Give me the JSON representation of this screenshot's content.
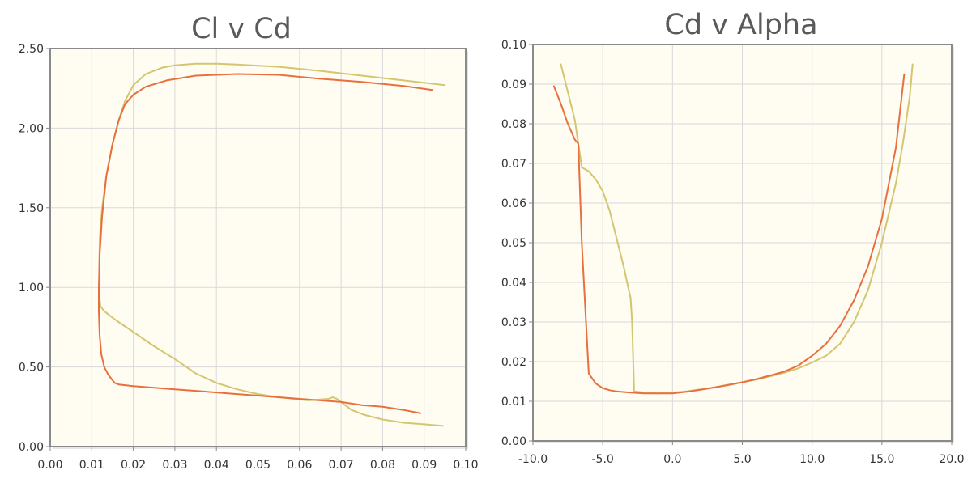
{
  "chart_data": [
    {
      "type": "line",
      "title": "Cl v Cd",
      "xlabel": "",
      "ylabel": "",
      "xlim": [
        0,
        0.1
      ],
      "ylim": [
        0,
        2.5
      ],
      "x_ticks": [
        "0.00",
        "0.01",
        "0.02",
        "0.03",
        "0.04",
        "0.05",
        "0.06",
        "0.07",
        "0.08",
        "0.09",
        "0.10"
      ],
      "y_ticks": [
        "0.00",
        "0.50",
        "1.00",
        "1.50",
        "2.00",
        "2.50"
      ],
      "grid": true,
      "background": "#fffcf2",
      "series": [
        {
          "color": "#d4c670",
          "points": [
            [
              0.0945,
              0.13
            ],
            [
              0.09,
              0.14
            ],
            [
              0.085,
              0.15
            ],
            [
              0.08,
              0.17
            ],
            [
              0.0755,
              0.2
            ],
            [
              0.0725,
              0.23
            ],
            [
              0.0705,
              0.27
            ],
            [
              0.069,
              0.3
            ],
            [
              0.068,
              0.31
            ],
            [
              0.067,
              0.3
            ],
            [
              0.062,
              0.29
            ],
            [
              0.055,
              0.31
            ],
            [
              0.05,
              0.33
            ],
            [
              0.045,
              0.36
            ],
            [
              0.04,
              0.4
            ],
            [
              0.035,
              0.46
            ],
            [
              0.03,
              0.55
            ],
            [
              0.025,
              0.63
            ],
            [
              0.02,
              0.72
            ],
            [
              0.016,
              0.79
            ],
            [
              0.013,
              0.85
            ],
            [
              0.0121,
              0.88
            ],
            [
              0.0118,
              0.95
            ],
            [
              0.0118,
              1.1
            ],
            [
              0.0119,
              1.3
            ],
            [
              0.0125,
              1.5
            ],
            [
              0.0135,
              1.7
            ],
            [
              0.015,
              1.9
            ],
            [
              0.0165,
              2.05
            ],
            [
              0.018,
              2.17
            ],
            [
              0.02,
              2.27
            ],
            [
              0.023,
              2.34
            ],
            [
              0.027,
              2.38
            ],
            [
              0.03,
              2.395
            ],
            [
              0.035,
              2.405
            ],
            [
              0.04,
              2.405
            ],
            [
              0.045,
              2.4
            ],
            [
              0.055,
              2.385
            ],
            [
              0.065,
              2.36
            ],
            [
              0.075,
              2.33
            ],
            [
              0.085,
              2.3
            ],
            [
              0.095,
              2.27
            ]
          ]
        },
        {
          "color": "#e8703e",
          "points": [
            [
              0.0891,
              0.21
            ],
            [
              0.085,
              0.23
            ],
            [
              0.08,
              0.25
            ],
            [
              0.075,
              0.26
            ],
            [
              0.07,
              0.28
            ],
            [
              0.065,
              0.29
            ],
            [
              0.06,
              0.3
            ],
            [
              0.055,
              0.31
            ],
            [
              0.05,
              0.32
            ],
            [
              0.045,
              0.33
            ],
            [
              0.04,
              0.34
            ],
            [
              0.035,
              0.35
            ],
            [
              0.03,
              0.36
            ],
            [
              0.025,
              0.37
            ],
            [
              0.02,
              0.38
            ],
            [
              0.0165,
              0.39
            ],
            [
              0.0155,
              0.4
            ],
            [
              0.014,
              0.45
            ],
            [
              0.013,
              0.5
            ],
            [
              0.0123,
              0.58
            ],
            [
              0.0119,
              0.7
            ],
            [
              0.0117,
              0.85
            ],
            [
              0.0117,
              1.0
            ],
            [
              0.0119,
              1.2
            ],
            [
              0.0125,
              1.45
            ],
            [
              0.0135,
              1.7
            ],
            [
              0.015,
              1.9
            ],
            [
              0.0165,
              2.05
            ],
            [
              0.018,
              2.15
            ],
            [
              0.02,
              2.21
            ],
            [
              0.023,
              2.26
            ],
            [
              0.028,
              2.3
            ],
            [
              0.035,
              2.33
            ],
            [
              0.045,
              2.34
            ],
            [
              0.055,
              2.335
            ],
            [
              0.065,
              2.31
            ],
            [
              0.075,
              2.29
            ],
            [
              0.085,
              2.265
            ],
            [
              0.092,
              2.24
            ]
          ]
        }
      ]
    },
    {
      "type": "line",
      "title": "Cd v Alpha",
      "xlabel": "",
      "ylabel": "",
      "xlim": [
        -10,
        20
      ],
      "ylim": [
        0,
        0.1
      ],
      "x_ticks": [
        "-10.0",
        "-5.0",
        "0.0",
        "5.0",
        "10.0",
        "15.0",
        "20.0"
      ],
      "y_ticks": [
        "0.00",
        "0.01",
        "0.02",
        "0.03",
        "0.04",
        "0.05",
        "0.06",
        "0.07",
        "0.08",
        "0.09",
        "0.10"
      ],
      "grid": true,
      "background": "#fffcf2",
      "series": [
        {
          "color": "#d4c670",
          "points": [
            [
              -8.0,
              0.095
            ],
            [
              -7.5,
              0.088
            ],
            [
              -7.0,
              0.081
            ],
            [
              -6.75,
              0.075
            ],
            [
              -6.5,
              0.069
            ],
            [
              -6.0,
              0.068
            ],
            [
              -5.5,
              0.066
            ],
            [
              -5.0,
              0.063
            ],
            [
              -4.5,
              0.058
            ],
            [
              -4.0,
              0.051
            ],
            [
              -3.5,
              0.044
            ],
            [
              -3.0,
              0.036
            ],
            [
              -2.9,
              0.03
            ],
            [
              -2.75,
              0.0125
            ],
            [
              -2.5,
              0.0124
            ],
            [
              -2.0,
              0.0122
            ],
            [
              -1.0,
              0.012
            ],
            [
              0.0,
              0.0122
            ],
            [
              1.0,
              0.0125
            ],
            [
              2.0,
              0.013
            ],
            [
              3.0,
              0.0135
            ],
            [
              4.0,
              0.0142
            ],
            [
              5.0,
              0.0148
            ],
            [
              6.0,
              0.0155
            ],
            [
              7.0,
              0.0163
            ],
            [
              8.0,
              0.0172
            ],
            [
              9.0,
              0.0183
            ],
            [
              10.0,
              0.0198
            ],
            [
              11.0,
              0.0215
            ],
            [
              12.0,
              0.0245
            ],
            [
              13.0,
              0.03
            ],
            [
              14.0,
              0.038
            ],
            [
              15.0,
              0.05
            ],
            [
              16.0,
              0.065
            ],
            [
              16.5,
              0.075
            ],
            [
              17.0,
              0.087
            ],
            [
              17.2,
              0.095
            ]
          ]
        },
        {
          "color": "#e8703e",
          "points": [
            [
              -8.5,
              0.0895
            ],
            [
              -8.0,
              0.085
            ],
            [
              -7.5,
              0.08
            ],
            [
              -7.0,
              0.076
            ],
            [
              -6.75,
              0.075
            ],
            [
              -6.5,
              0.05
            ],
            [
              -6.2,
              0.03
            ],
            [
              -6.0,
              0.017
            ],
            [
              -5.5,
              0.0145
            ],
            [
              -5.0,
              0.0133
            ],
            [
              -4.5,
              0.0128
            ],
            [
              -4.0,
              0.0125
            ],
            [
              -3.0,
              0.0122
            ],
            [
              -2.0,
              0.012
            ],
            [
              -1.0,
              0.012
            ],
            [
              0.0,
              0.012
            ],
            [
              1.0,
              0.0124
            ],
            [
              2.0,
              0.0129
            ],
            [
              3.0,
              0.0135
            ],
            [
              4.0,
              0.0141
            ],
            [
              5.0,
              0.0148
            ],
            [
              6.0,
              0.0156
            ],
            [
              7.0,
              0.0165
            ],
            [
              8.0,
              0.0175
            ],
            [
              9.0,
              0.019
            ],
            [
              10.0,
              0.0215
            ],
            [
              11.0,
              0.0245
            ],
            [
              12.0,
              0.029
            ],
            [
              13.0,
              0.0355
            ],
            [
              14.0,
              0.044
            ],
            [
              15.0,
              0.056
            ],
            [
              16.0,
              0.074
            ],
            [
              16.6,
              0.0925
            ]
          ]
        }
      ]
    }
  ]
}
